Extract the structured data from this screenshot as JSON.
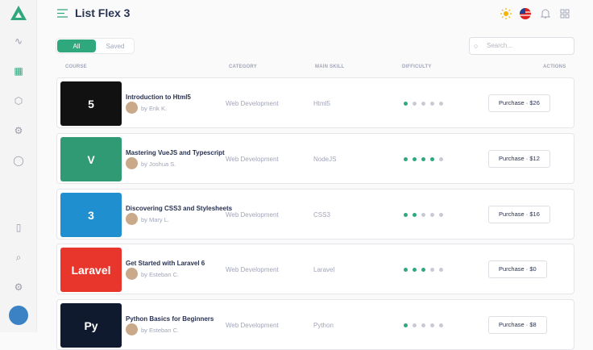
{
  "header": {
    "title": "List Flex 3",
    "search_placeholder": "Search..."
  },
  "colors": {
    "accent": "#2fa87e",
    "title": "#283252"
  },
  "sidebar": {
    "items": [
      "activity-icon",
      "grid-icon",
      "box-icon",
      "cog-icon",
      "chat-icon",
      "panel-icon",
      "search-icon",
      "settings-icon"
    ]
  },
  "tabs": [
    {
      "label": "All",
      "active": true
    },
    {
      "label": "Saved",
      "active": false
    }
  ],
  "columns": [
    "COURSE",
    "CATEGORY",
    "MAIN SKILL",
    "DIFFICULTY",
    "ACTIONS"
  ],
  "rows": [
    {
      "name": "Introduction to Html5",
      "author": "by Erik K.",
      "category": "Web Development",
      "skill": "Html5",
      "difficulty": 1,
      "action": "Purchase · $26",
      "thumb_text": "5",
      "thumb_color": "#111111"
    },
    {
      "name": "Mastering VueJS and Typescript",
      "author": "by Joshua S.",
      "category": "Web Development",
      "skill": "NodeJS",
      "difficulty": 4,
      "action": "Purchase · $12",
      "thumb_text": "V",
      "thumb_color": "#2f9a74"
    },
    {
      "name": "Discovering CSS3 and Stylesheets",
      "author": "by Mary L.",
      "category": "Web Development",
      "skill": "CSS3",
      "difficulty": 2,
      "action": "Purchase · $16",
      "thumb_text": "3",
      "thumb_color": "#1f8fcf"
    },
    {
      "name": "Get Started with Laravel 6",
      "author": "by Esteban C.",
      "category": "Web Development",
      "skill": "Laravel",
      "difficulty": 3,
      "action": "Purchase · $0",
      "thumb_text": "Laravel",
      "thumb_color": "#e8362c"
    },
    {
      "name": "Python Basics for Beginners",
      "author": "by Esteban C.",
      "category": "Web Development",
      "skill": "Python",
      "difficulty": 1,
      "action": "Purchase · $8",
      "thumb_text": "Py",
      "thumb_color": "#0f1a2e"
    }
  ]
}
